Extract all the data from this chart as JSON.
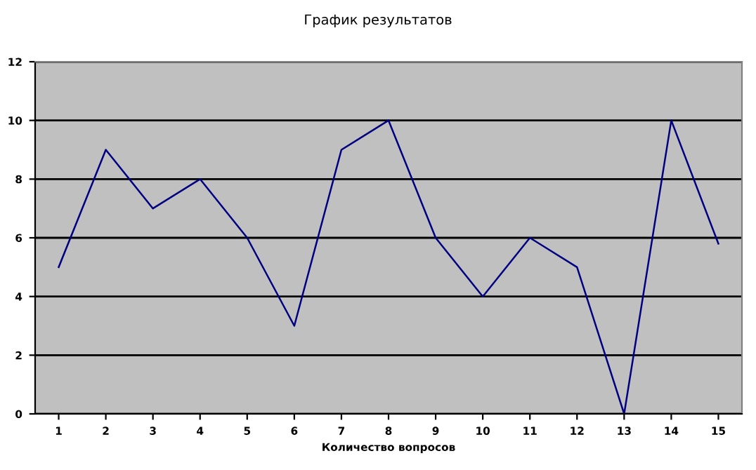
{
  "chart_data": {
    "type": "line",
    "title": "График результатов",
    "xlabel": "Количество вопросов",
    "categories": [
      "1",
      "2",
      "3",
      "4",
      "5",
      "6",
      "7",
      "8",
      "9",
      "10",
      "11",
      "12",
      "13",
      "14",
      "15"
    ],
    "series": [
      {
        "color": "#000080",
        "values": [
          5,
          9,
          7,
          8,
          6,
          3,
          9,
          10,
          6,
          4,
          6,
          5,
          0,
          10,
          5.8
        ]
      }
    ],
    "ylim": [
      0,
      12
    ],
    "yticks": [
      0,
      2,
      4,
      6,
      8,
      10,
      12
    ],
    "grid": "y",
    "legend": false,
    "marker": "none",
    "line_style": "solid"
  }
}
